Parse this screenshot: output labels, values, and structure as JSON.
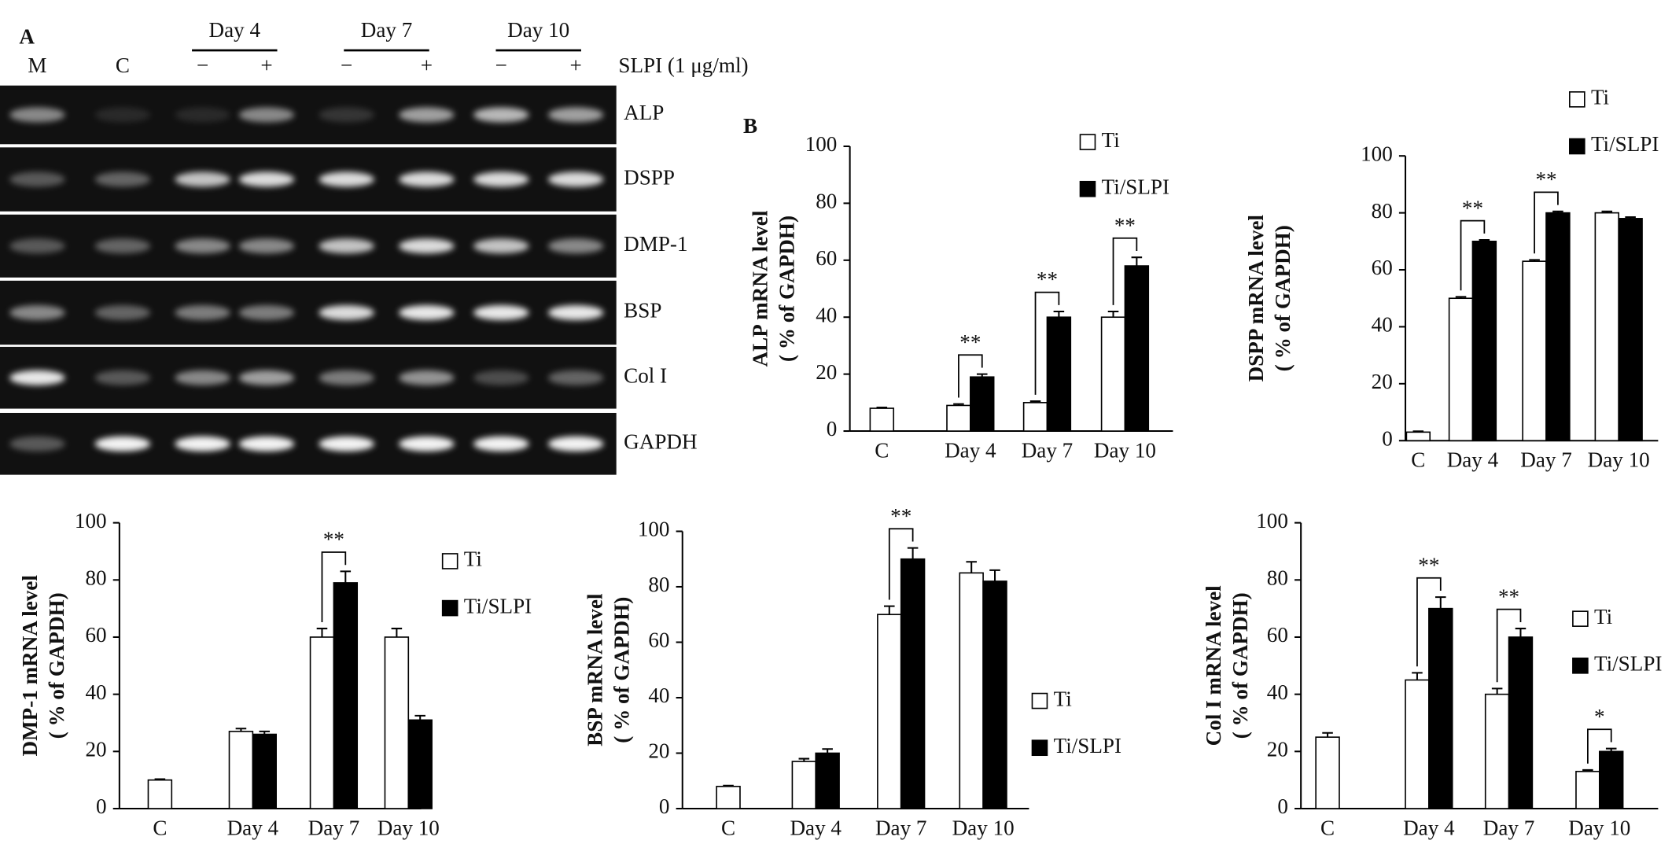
{
  "gel": {
    "label": "A",
    "lanes": [
      "M",
      "C",
      "−",
      "+",
      "−",
      "+",
      "−",
      "+"
    ],
    "groups": [
      "Day 4",
      "Day 7",
      "Day 10"
    ],
    "treatment": "SLPI (1 μg/ml)",
    "genes": [
      "ALP",
      "DSPP",
      "DMP-1",
      "BSP",
      "Col I",
      "GAPDH"
    ]
  },
  "panel_b_label": "B",
  "chart_data": [
    {
      "type": "bar",
      "ylabel": [
        "ALP mRNA level",
        "( % of GAPDH)"
      ],
      "categories": [
        "C",
        "Day 4",
        "Day 7",
        "Day 10"
      ],
      "series": [
        {
          "name": "Ti",
          "color": "#ffffff",
          "values": [
            8,
            9,
            10,
            40
          ],
          "errors": [
            0.3,
            0.5,
            0.5,
            2
          ]
        },
        {
          "name": "Ti/SLPI",
          "color": "#000000",
          "values": [
            null,
            19,
            40,
            58
          ],
          "errors": [
            null,
            1,
            2,
            3
          ]
        }
      ],
      "ylim": [
        0,
        100
      ],
      "yticks": [
        0,
        20,
        40,
        60,
        80,
        100
      ],
      "annotations": [
        {
          "label": "**",
          "category": "Day 4"
        },
        {
          "label": "**",
          "category": "Day 7"
        },
        {
          "label": "**",
          "category": "Day 10"
        }
      ]
    },
    {
      "type": "bar",
      "ylabel": [
        "DSPP mRNA level",
        "( % of GAPDH)"
      ],
      "categories": [
        "C",
        "Day 4",
        "Day 7",
        "Day 10"
      ],
      "series": [
        {
          "name": "Ti",
          "color": "#ffffff",
          "values": [
            3,
            50,
            63,
            80
          ],
          "errors": [
            0.3,
            0.5,
            0.5,
            0.5
          ]
        },
        {
          "name": "Ti/SLPI",
          "color": "#000000",
          "values": [
            null,
            70,
            80,
            78
          ],
          "errors": [
            null,
            0.5,
            0.5,
            0.5
          ]
        }
      ],
      "ylim": [
        0,
        100
      ],
      "yticks": [
        0,
        20,
        40,
        60,
        80,
        100
      ],
      "annotations": [
        {
          "label": "**",
          "category": "Day 4"
        },
        {
          "label": "**",
          "category": "Day 7"
        }
      ]
    },
    {
      "type": "bar",
      "ylabel": [
        "DMP-1 mRNA level",
        "( % of GAPDH)"
      ],
      "categories": [
        "C",
        "Day 4",
        "Day 7",
        "Day 10"
      ],
      "series": [
        {
          "name": "Ti",
          "color": "#ffffff",
          "values": [
            10,
            27,
            60,
            60
          ],
          "errors": [
            0.3,
            1,
            3,
            3
          ]
        },
        {
          "name": "Ti/SLPI",
          "color": "#000000",
          "values": [
            null,
            26,
            79,
            31
          ],
          "errors": [
            null,
            1,
            4,
            1.5
          ]
        }
      ],
      "ylim": [
        0,
        100
      ],
      "yticks": [
        0,
        20,
        40,
        60,
        80,
        100
      ],
      "annotations": [
        {
          "label": "**",
          "category": "Day 7"
        }
      ]
    },
    {
      "type": "bar",
      "ylabel": [
        "BSP mRNA level",
        "( % of GAPDH)"
      ],
      "categories": [
        "C",
        "Day 4",
        "Day 7",
        "Day 10"
      ],
      "series": [
        {
          "name": "Ti",
          "color": "#ffffff",
          "values": [
            8,
            17,
            70,
            85
          ],
          "errors": [
            0.3,
            1,
            3,
            4
          ]
        },
        {
          "name": "Ti/SLPI",
          "color": "#000000",
          "values": [
            null,
            20,
            90,
            82
          ],
          "errors": [
            null,
            1.5,
            4,
            4
          ]
        }
      ],
      "ylim": [
        0,
        100
      ],
      "yticks": [
        0,
        20,
        40,
        60,
        80,
        100
      ],
      "annotations": [
        {
          "label": "**",
          "category": "Day 7"
        }
      ]
    },
    {
      "type": "bar",
      "ylabel": [
        "Col I mRNA level",
        "( % of GAPDH)"
      ],
      "categories": [
        "C",
        "Day 4",
        "Day 7",
        "Day 10"
      ],
      "series": [
        {
          "name": "Ti",
          "color": "#ffffff",
          "values": [
            25,
            45,
            40,
            13
          ],
          "errors": [
            1.5,
            2.5,
            2,
            0.5
          ]
        },
        {
          "name": "Ti/SLPI",
          "color": "#000000",
          "values": [
            null,
            70,
            60,
            20
          ],
          "errors": [
            null,
            4,
            3,
            1
          ]
        }
      ],
      "ylim": [
        0,
        100
      ],
      "yticks": [
        0,
        20,
        40,
        60,
        80,
        100
      ],
      "annotations": [
        {
          "label": "**",
          "category": "Day 4"
        },
        {
          "label": "**",
          "category": "Day 7"
        },
        {
          "label": "*",
          "category": "Day 10"
        }
      ]
    }
  ]
}
